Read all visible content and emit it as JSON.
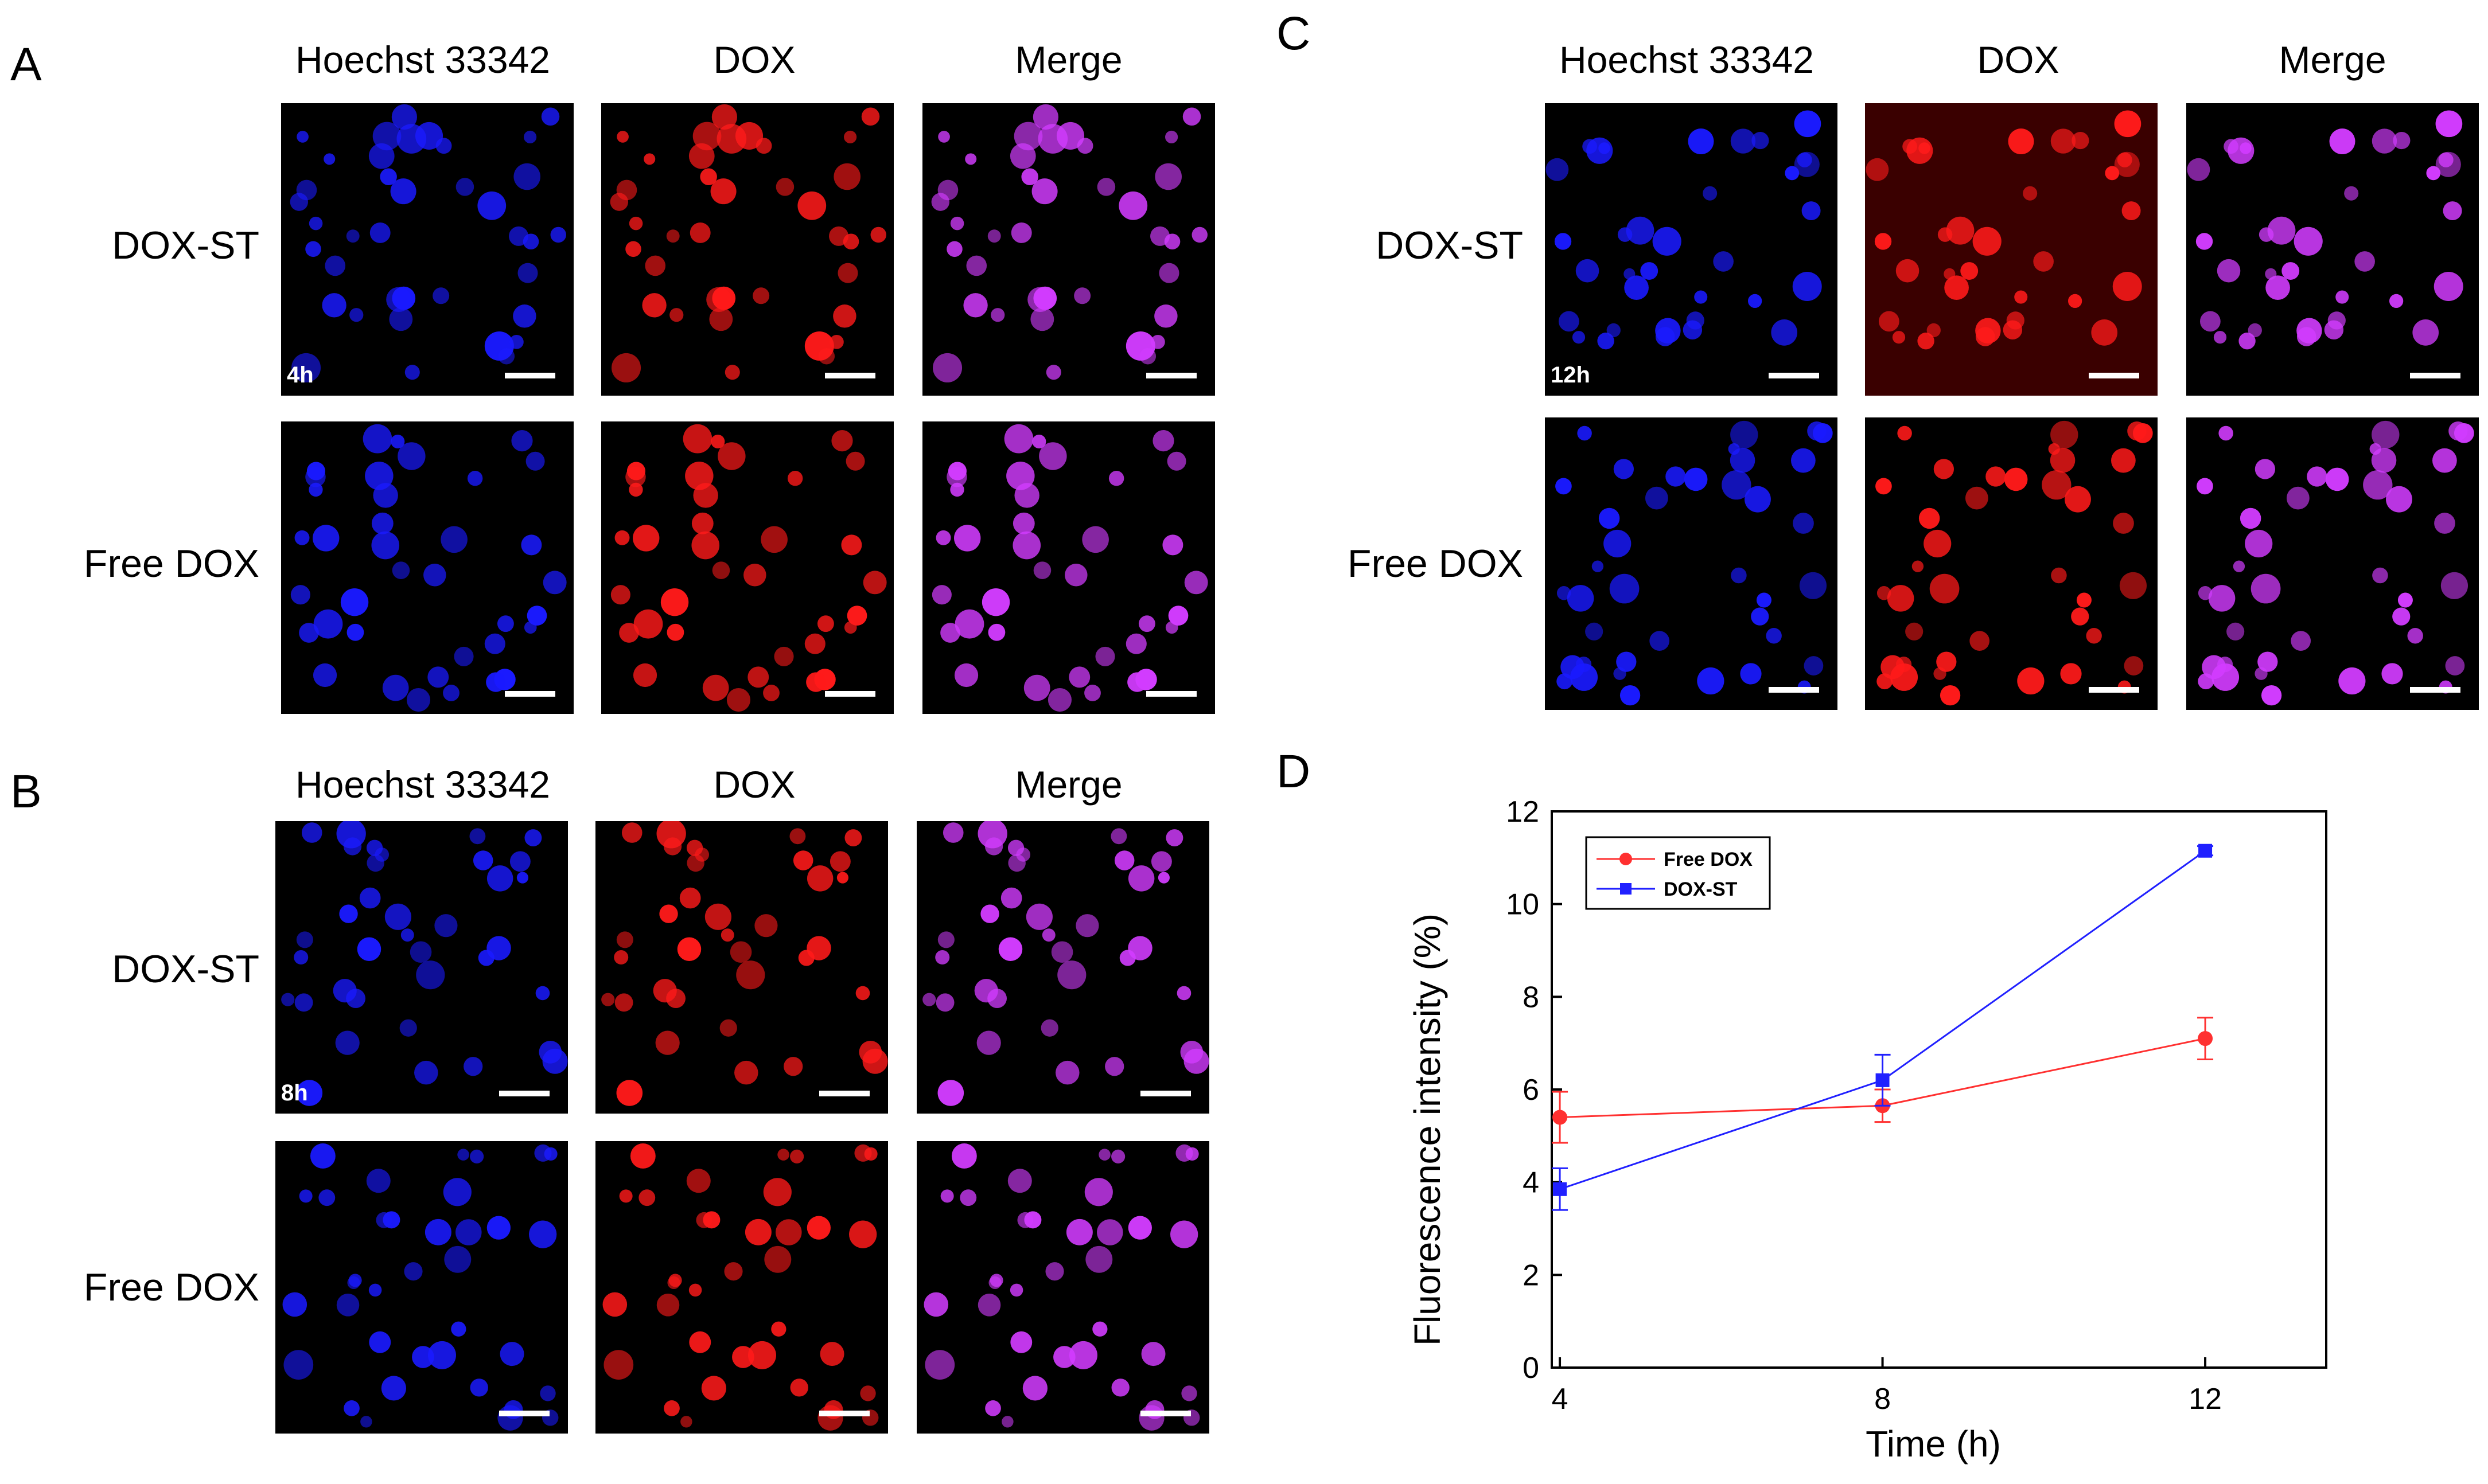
{
  "panels": {
    "A": {
      "letter": "A",
      "columns": [
        "Hoechst 33342",
        "DOX",
        "Merge"
      ],
      "rows": [
        "DOX-ST",
        "Free DOX"
      ],
      "time": "4h"
    },
    "B": {
      "letter": "B",
      "columns": [
        "Hoechst 33342",
        "DOX",
        "Merge"
      ],
      "rows": [
        "DOX-ST",
        "Free DOX"
      ],
      "time": "8h"
    },
    "C": {
      "letter": "C",
      "columns": [
        "Hoechst 33342",
        "DOX",
        "Merge"
      ],
      "rows": [
        "DOX-ST",
        "Free DOX"
      ],
      "time": "12h"
    },
    "D": {
      "letter": "D"
    }
  },
  "colors": {
    "hoechst": "#1a1aff",
    "dox": "#ff1a1a",
    "merge": "#d23cff",
    "free_dox_line": "#ff3030",
    "dox_st_line": "#2020ff"
  },
  "chart_data": {
    "type": "line",
    "title": "",
    "xlabel": "Time (h)",
    "ylabel": "Fluorescence intensity (%)",
    "x": [
      4,
      8,
      12
    ],
    "xticks": [
      "4",
      "8",
      "12"
    ],
    "ylim": [
      0,
      12
    ],
    "yticks": [
      "0",
      "2",
      "4",
      "6",
      "8",
      "10",
      "12"
    ],
    "series": [
      {
        "name": "Free DOX",
        "values": [
          5.4,
          5.65,
          7.1
        ],
        "errors": [
          0.55,
          0.35,
          0.45
        ],
        "marker": "circle",
        "color": "#ff3030"
      },
      {
        "name": "DOX-ST",
        "values": [
          3.85,
          6.2,
          11.15
        ],
        "errors": [
          0.45,
          0.55,
          0.1
        ],
        "marker": "square",
        "color": "#2020ff"
      }
    ],
    "legend": "top-left"
  }
}
